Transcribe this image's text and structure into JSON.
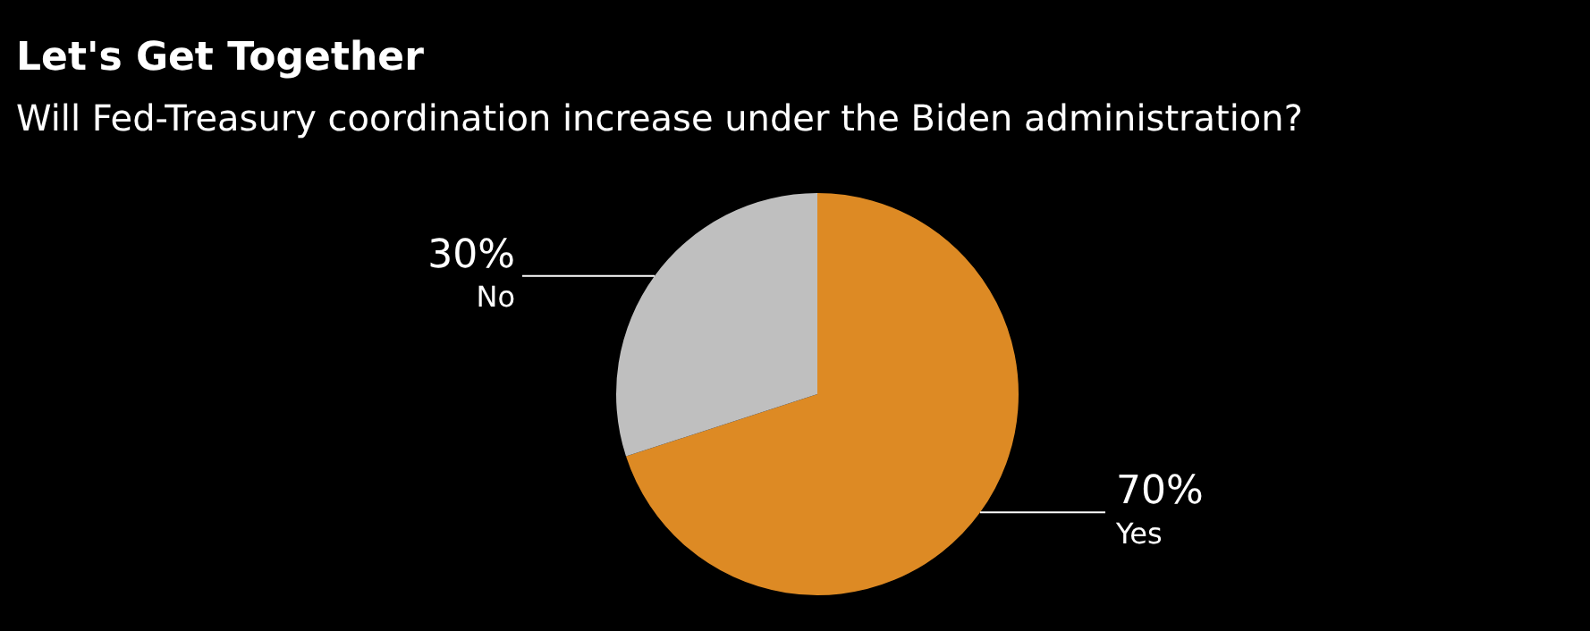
{
  "chart_data": {
    "type": "pie",
    "title": "Let's Get Together",
    "subtitle": "Will Fed-Treasury coordination increase under the Biden administration?",
    "categories": [
      "Yes",
      "No"
    ],
    "values": [
      70,
      30
    ],
    "value_labels": [
      "70%",
      "30%"
    ],
    "colors": [
      "#dd8a24",
      "#bfbfbf"
    ],
    "legend": false
  }
}
